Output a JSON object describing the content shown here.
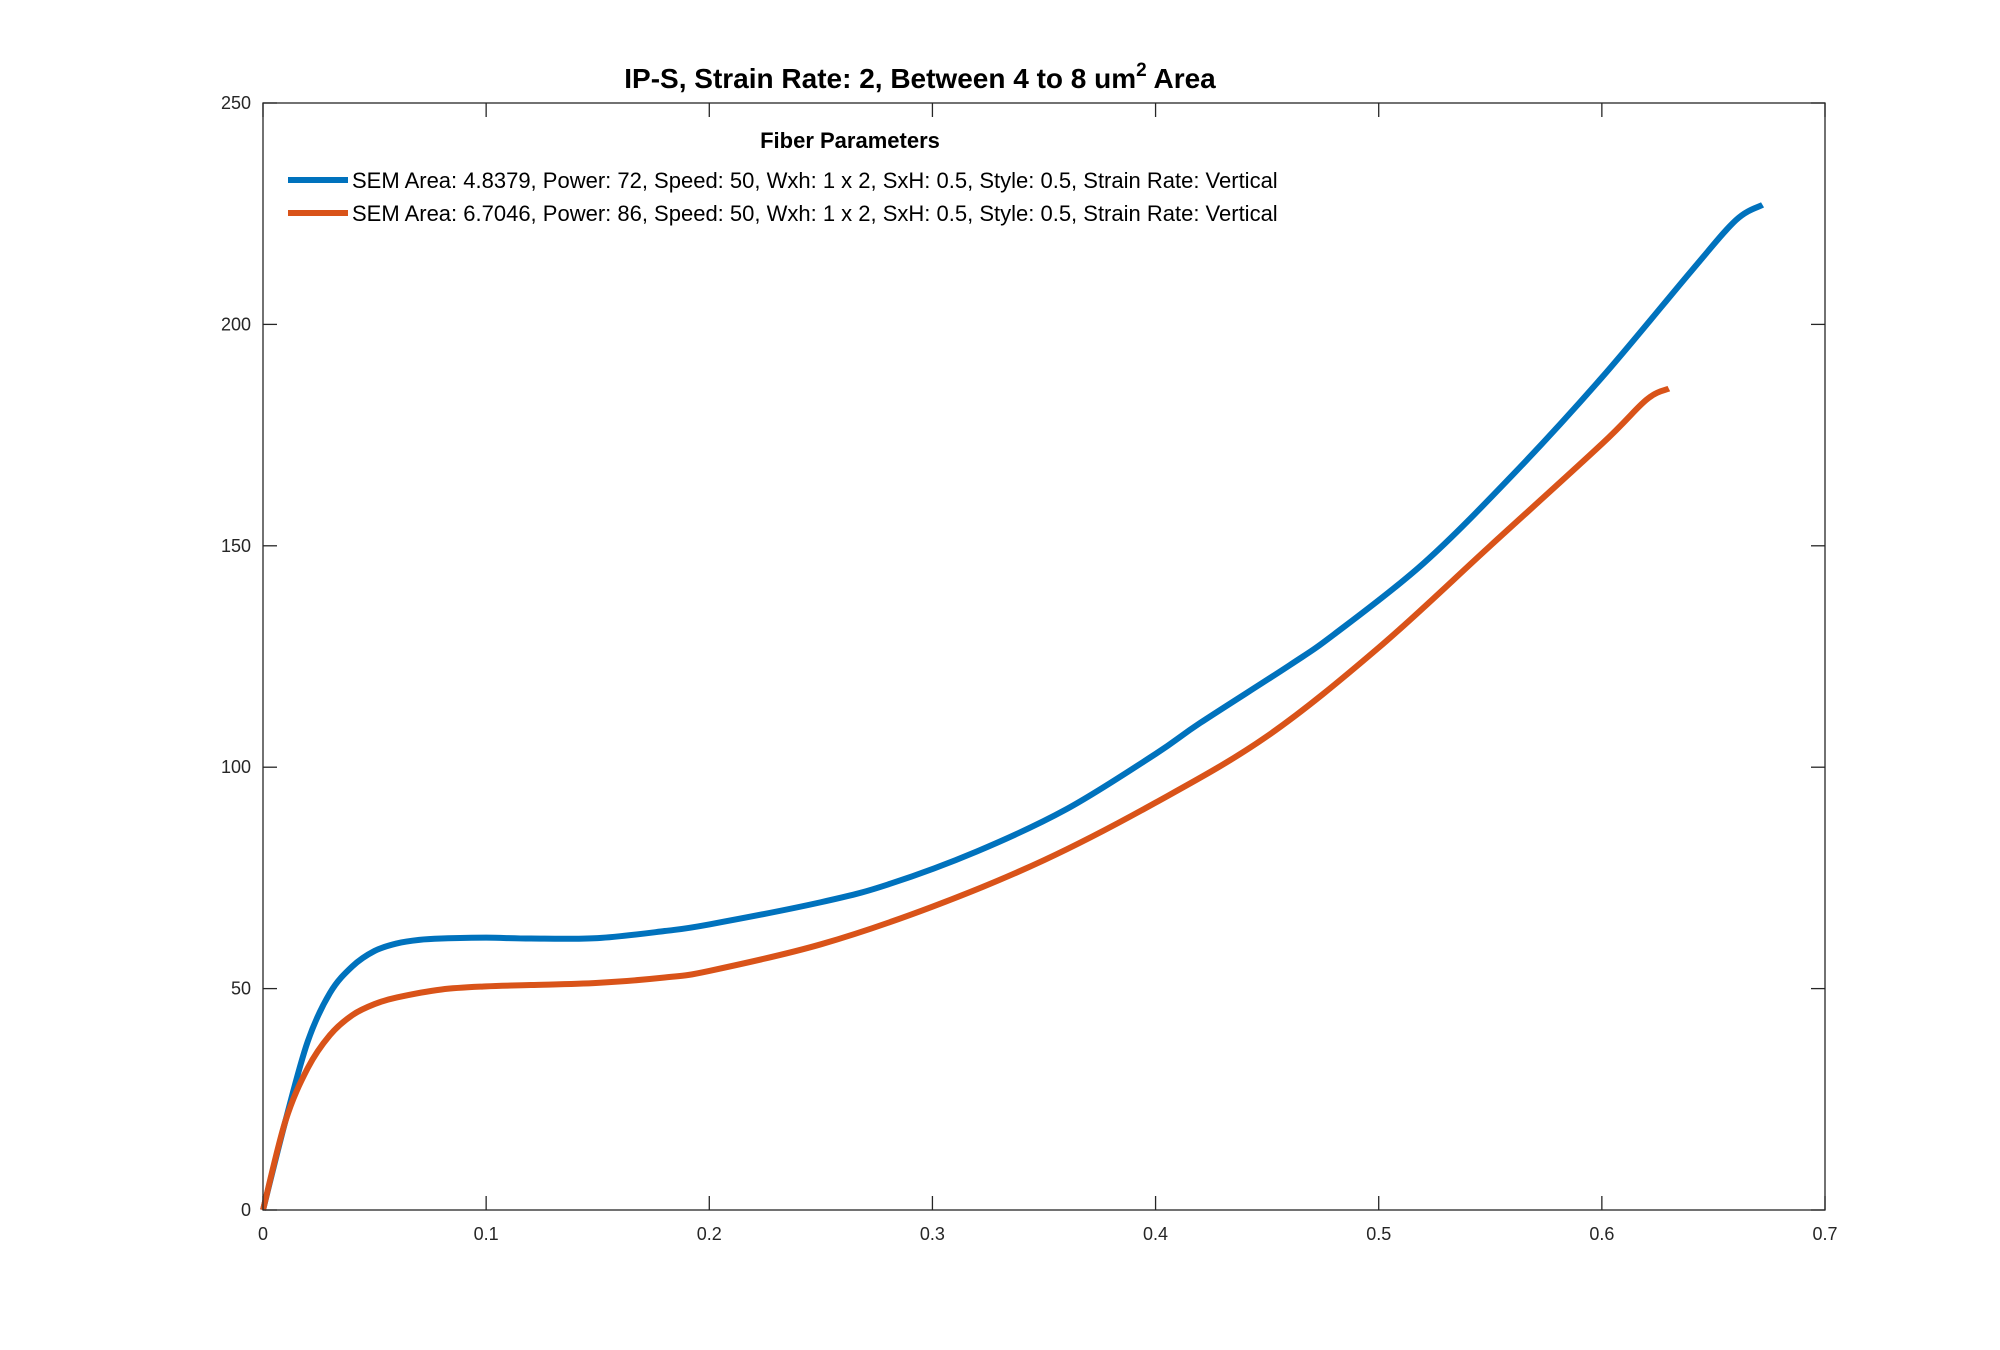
{
  "chart_data": {
    "type": "line",
    "title_main": "IP-S, Strain Rate: 2, Between 4 to 8 um",
    "title_sup": "2",
    "title_suffix": " Area",
    "xlabel": "",
    "ylabel": "",
    "xlim": [
      0,
      0.7
    ],
    "ylim": [
      0,
      250
    ],
    "xticks": [
      0,
      0.1,
      0.2,
      0.3,
      0.4,
      0.5,
      0.6,
      0.7
    ],
    "xtick_labels": [
      "0",
      "0.1",
      "0.2",
      "0.3",
      "0.4",
      "0.5",
      "0.6",
      "0.7"
    ],
    "yticks": [
      0,
      50,
      100,
      150,
      200,
      250
    ],
    "ytick_labels": [
      "0",
      "50",
      "100",
      "150",
      "200",
      "250"
    ],
    "grid": false,
    "legend_title": "Fiber Parameters",
    "legend_position": "top-left",
    "series": [
      {
        "name": "SEM Area: 4.8379, Power: 72, Speed: 50, Wxh: 1 x 2, SxH: 0.5, Style: 0.5, Strain Rate: Vertical",
        "color": "#0072BD",
        "x": [
          0,
          0.01,
          0.02,
          0.03,
          0.04,
          0.05,
          0.06,
          0.07,
          0.08,
          0.1,
          0.12,
          0.15,
          0.18,
          0.2,
          0.25,
          0.28,
          0.32,
          0.36,
          0.4,
          0.42,
          0.46,
          0.48,
          0.52,
          0.56,
          0.6,
          0.64,
          0.66,
          0.672
        ],
        "y": [
          0,
          20,
          38,
          49,
          55,
          58.5,
          60.2,
          61,
          61.3,
          61.5,
          61.3,
          61.4,
          63,
          64.5,
          69.5,
          73.5,
          81,
          90.5,
          103,
          110,
          123,
          130,
          146,
          166,
          188,
          212,
          223.5,
          227
        ]
      },
      {
        "name": "SEM Area: 6.7046, Power: 86, Speed: 50, Wxh: 1 x 2, SxH: 0.5, Style: 0.5, Strain Rate: Vertical",
        "color": "#D95319",
        "x": [
          0,
          0.01,
          0.02,
          0.03,
          0.04,
          0.05,
          0.06,
          0.08,
          0.1,
          0.12,
          0.15,
          0.18,
          0.2,
          0.25,
          0.3,
          0.35,
          0.4,
          0.45,
          0.5,
          0.55,
          0.6,
          0.62,
          0.63
        ],
        "y": [
          0,
          20,
          32,
          39.5,
          44,
          46.5,
          48,
          49.8,
          50.5,
          50.8,
          51.3,
          52.5,
          54,
          60,
          68.5,
          79,
          92,
          107,
          127,
          150,
          173,
          183,
          185.5
        ]
      }
    ]
  }
}
